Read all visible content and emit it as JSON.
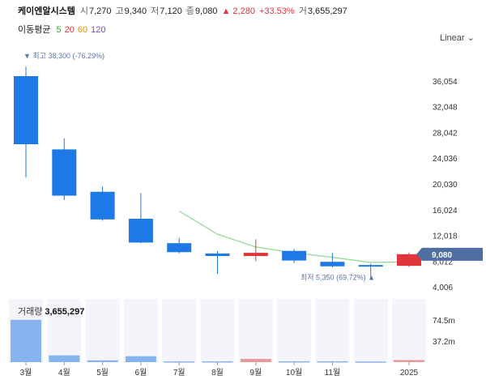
{
  "header": {
    "name": "케이엔알시스템",
    "open_label": "시",
    "open": "7,270",
    "high_label": "고",
    "high": "9,340",
    "low_label": "저",
    "low": "7,120",
    "close_label": "종",
    "close": "9,080",
    "change": "▲ 2,280",
    "change_pct": "+33.53%",
    "volume_label": "거",
    "volume": "3,655,297"
  },
  "ma_legend": {
    "label": "이동평균",
    "periods": [
      {
        "text": "5",
        "color": "#36a838"
      },
      {
        "text": "20",
        "color": "#e0343c"
      },
      {
        "text": "60",
        "color": "#f08c00"
      },
      {
        "text": "120",
        "color": "#8a44c8"
      }
    ]
  },
  "scale_toggle": "Linear ⌄",
  "colors": {
    "up": "#e0343c",
    "down": "#1e78e6",
    "ma5": "#8fd88f",
    "price_tag": "#4f6fa3"
  },
  "chart_data": {
    "type": "candlestick",
    "x_labels": [
      "3월",
      "4월",
      "5월",
      "6월",
      "7월",
      "8월",
      "9월",
      "10월",
      "11월",
      "",
      "2025"
    ],
    "y_ticks": [
      "36,054",
      "32,048",
      "28,042",
      "24,036",
      "20,030",
      "16,024",
      "12,018",
      "8,012",
      "4,006"
    ],
    "y_tick_values": [
      36054,
      32048,
      28042,
      24036,
      20030,
      16024,
      12018,
      8012,
      4006
    ],
    "ylim": [
      2500,
      39700
    ],
    "candles": [
      {
        "open": 36800,
        "high": 38300,
        "low": 21000,
        "close": 26200
      },
      {
        "open": 25400,
        "high": 27100,
        "low": 17500,
        "close": 18200
      },
      {
        "open": 18800,
        "high": 19600,
        "low": 14300,
        "close": 14500
      },
      {
        "open": 14600,
        "high": 18600,
        "low": 10800,
        "close": 10900
      },
      {
        "open": 10800,
        "high": 11600,
        "low": 9200,
        "close": 9400
      },
      {
        "open": 9200,
        "high": 9600,
        "low": 6000,
        "close": 8800
      },
      {
        "open": 8800,
        "high": 11400,
        "low": 8000,
        "close": 9300
      },
      {
        "open": 9600,
        "high": 9900,
        "low": 7700,
        "close": 8100
      },
      {
        "open": 7900,
        "high": 9300,
        "low": 7000,
        "close": 7200
      },
      {
        "open": 7400,
        "high": 7600,
        "low": 5350,
        "close": 7200
      },
      {
        "open": 7270,
        "high": 9340,
        "low": 7120,
        "close": 9080
      }
    ],
    "ma5": [
      null,
      null,
      null,
      null,
      15800,
      12200,
      10200,
      9300,
      8600,
      7800,
      7900
    ],
    "max_annotation": "▼ 최고 38,300 (-76.29%)",
    "min_annotation": "최저 5,350 (69.72%) ▲",
    "current_price": "9,080",
    "volume_title": "거래량",
    "volume_value": "3,655,297",
    "volume_ticks": [
      "74.5m",
      "37.2m"
    ],
    "volume_tick_values": [
      74500000,
      37200000
    ],
    "volume_ylim": [
      0,
      112000000
    ],
    "volumes": [
      75000000,
      12000000,
      3200000,
      10500000,
      1300000,
      1400000,
      5800000,
      1500000,
      1500000,
      1000000,
      3655297
    ]
  }
}
